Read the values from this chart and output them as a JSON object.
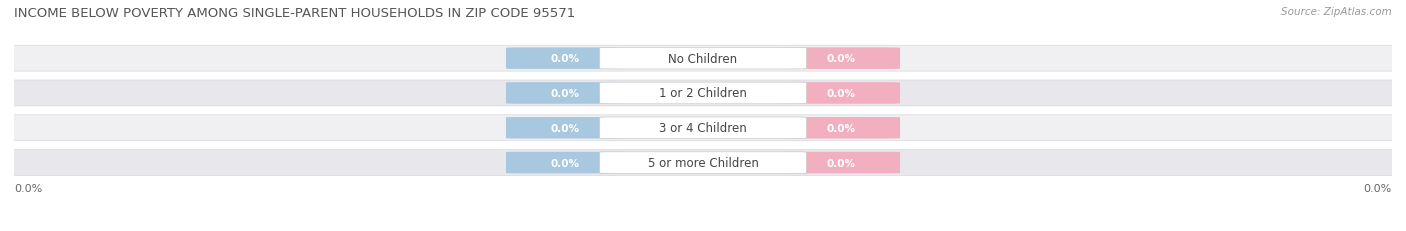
{
  "title": "INCOME BELOW POVERTY AMONG SINGLE-PARENT HOUSEHOLDS IN ZIP CODE 95571",
  "source": "Source: ZipAtlas.com",
  "categories": [
    "No Children",
    "1 or 2 Children",
    "3 or 4 Children",
    "5 or more Children"
  ],
  "father_values": [
    0.0,
    0.0,
    0.0,
    0.0
  ],
  "mother_values": [
    0.0,
    0.0,
    0.0,
    0.0
  ],
  "father_color": "#a8c8e0",
  "mother_color": "#f2afc0",
  "title_fontsize": 9.5,
  "source_fontsize": 7.5,
  "legend_fontsize": 8.5,
  "value_fontsize": 7.5,
  "category_fontsize": 8.5,
  "axis_tick_fontsize": 8,
  "axis_label_left": "0.0%",
  "axis_label_right": "0.0%",
  "bg_color": "#ffffff",
  "row_color_odd": "#f0f0f2",
  "row_color_even": "#e8e8ec",
  "row_border_color": "#d8d8de"
}
